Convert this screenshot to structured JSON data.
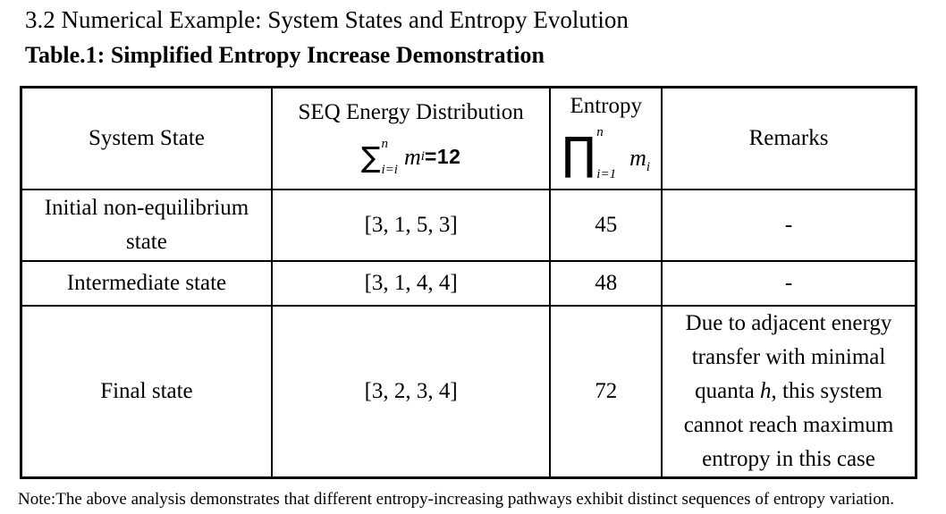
{
  "colors": {
    "text": "#000000",
    "border": "#000000",
    "background": "#ffffff"
  },
  "heading": {
    "section": "3.2 Numerical Example: System States and Entropy Evolution",
    "table_caption": "Table.1: Simplified Entropy Increase Demonstration"
  },
  "table": {
    "header": {
      "system_state": "System State",
      "seq_title": "SEQ Energy Distribution",
      "seq_formula": {
        "operator": "∑",
        "upper": "n",
        "lower": "i=i",
        "variable": "m",
        "var_subscript": "i",
        "equals": "=12"
      },
      "entropy_title": "Entropy",
      "entropy_formula": {
        "operator": "∏",
        "upper": "n",
        "lower": "i=1",
        "variable": "m",
        "var_subscript": "i"
      },
      "remarks": "Remarks"
    },
    "rows": [
      {
        "state": "Initial non-equilibrium state",
        "distribution": "[3, 1, 5, 3]",
        "entropy": "45",
        "remarks": "-"
      },
      {
        "state": "Intermediate state",
        "distribution": "[3, 1, 4, 4]",
        "entropy": "48",
        "remarks": "-"
      },
      {
        "state": "Final state",
        "distribution": "[3, 2, 3, 4]",
        "entropy": "72",
        "remarks_long": {
          "prefix": "Due to adjacent energy transfer with minimal quanta ",
          "italic_var": "h",
          "suffix": ", this system cannot reach maximum entropy in this case"
        }
      }
    ]
  },
  "note": "Note:The above analysis demonstrates that different entropy-increasing pathways exhibit distinct sequences of entropy variation."
}
